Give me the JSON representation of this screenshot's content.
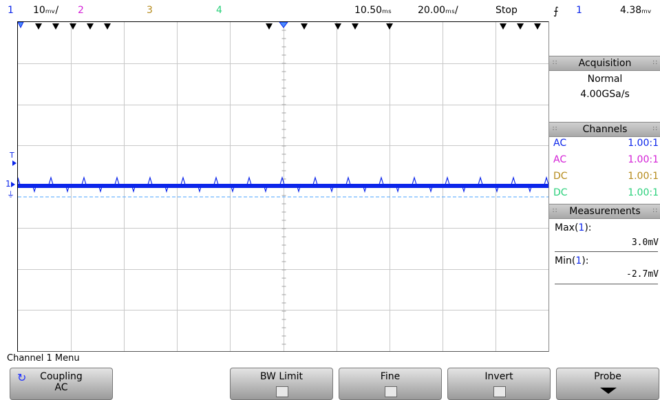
{
  "status": {
    "ch1_num": "1",
    "ch1_scale": "10ₘᵥ/",
    "ch2_num": "2",
    "ch3_num": "3",
    "ch4_num": "4",
    "time_pos": "10.50ₘₛ",
    "time_scale": "20.00ₘₛ/",
    "run_state": "Stop",
    "trigger_icon": "trigger-falling-edge-icon",
    "trig_ch": "1",
    "trig_level": "4.38ₘᵥ"
  },
  "colors": {
    "ch1": "#0b25ea",
    "ch2": "#d31ed6",
    "ch3": "#b58a1a",
    "ch4": "#28d07a",
    "panel_header": "#b8b8b8",
    "grid": "#c8c8c8"
  },
  "panel": {
    "acquisition_title": "Acquisition",
    "acq_mode": "Normal",
    "acq_rate": "4.00GSa/s",
    "channels_title": "Channels",
    "channels": [
      {
        "coupling": "AC",
        "probe": "1.00:1"
      },
      {
        "coupling": "AC",
        "probe": "1.00:1"
      },
      {
        "coupling": "DC",
        "probe": "1.00:1"
      },
      {
        "coupling": "DC",
        "probe": "1.00:1"
      }
    ],
    "measurements_title": "Measurements",
    "meas": [
      {
        "label": "Max(",
        "ch": "1",
        "close": "):",
        "value": "3.0mV"
      },
      {
        "label": "Min(",
        "ch": "1",
        "close": "):",
        "value": "-2.7mV"
      }
    ]
  },
  "markers": {
    "trigger_marker": "T",
    "ch1_marker": "1",
    "ground_icon": "ground-icon"
  },
  "menu": {
    "title": "Channel 1 Menu",
    "coupling_label": "Coupling",
    "coupling_value": "AC",
    "bw_limit_label": "BW Limit",
    "fine_label": "Fine",
    "invert_label": "Invert",
    "probe_label": "Probe"
  }
}
